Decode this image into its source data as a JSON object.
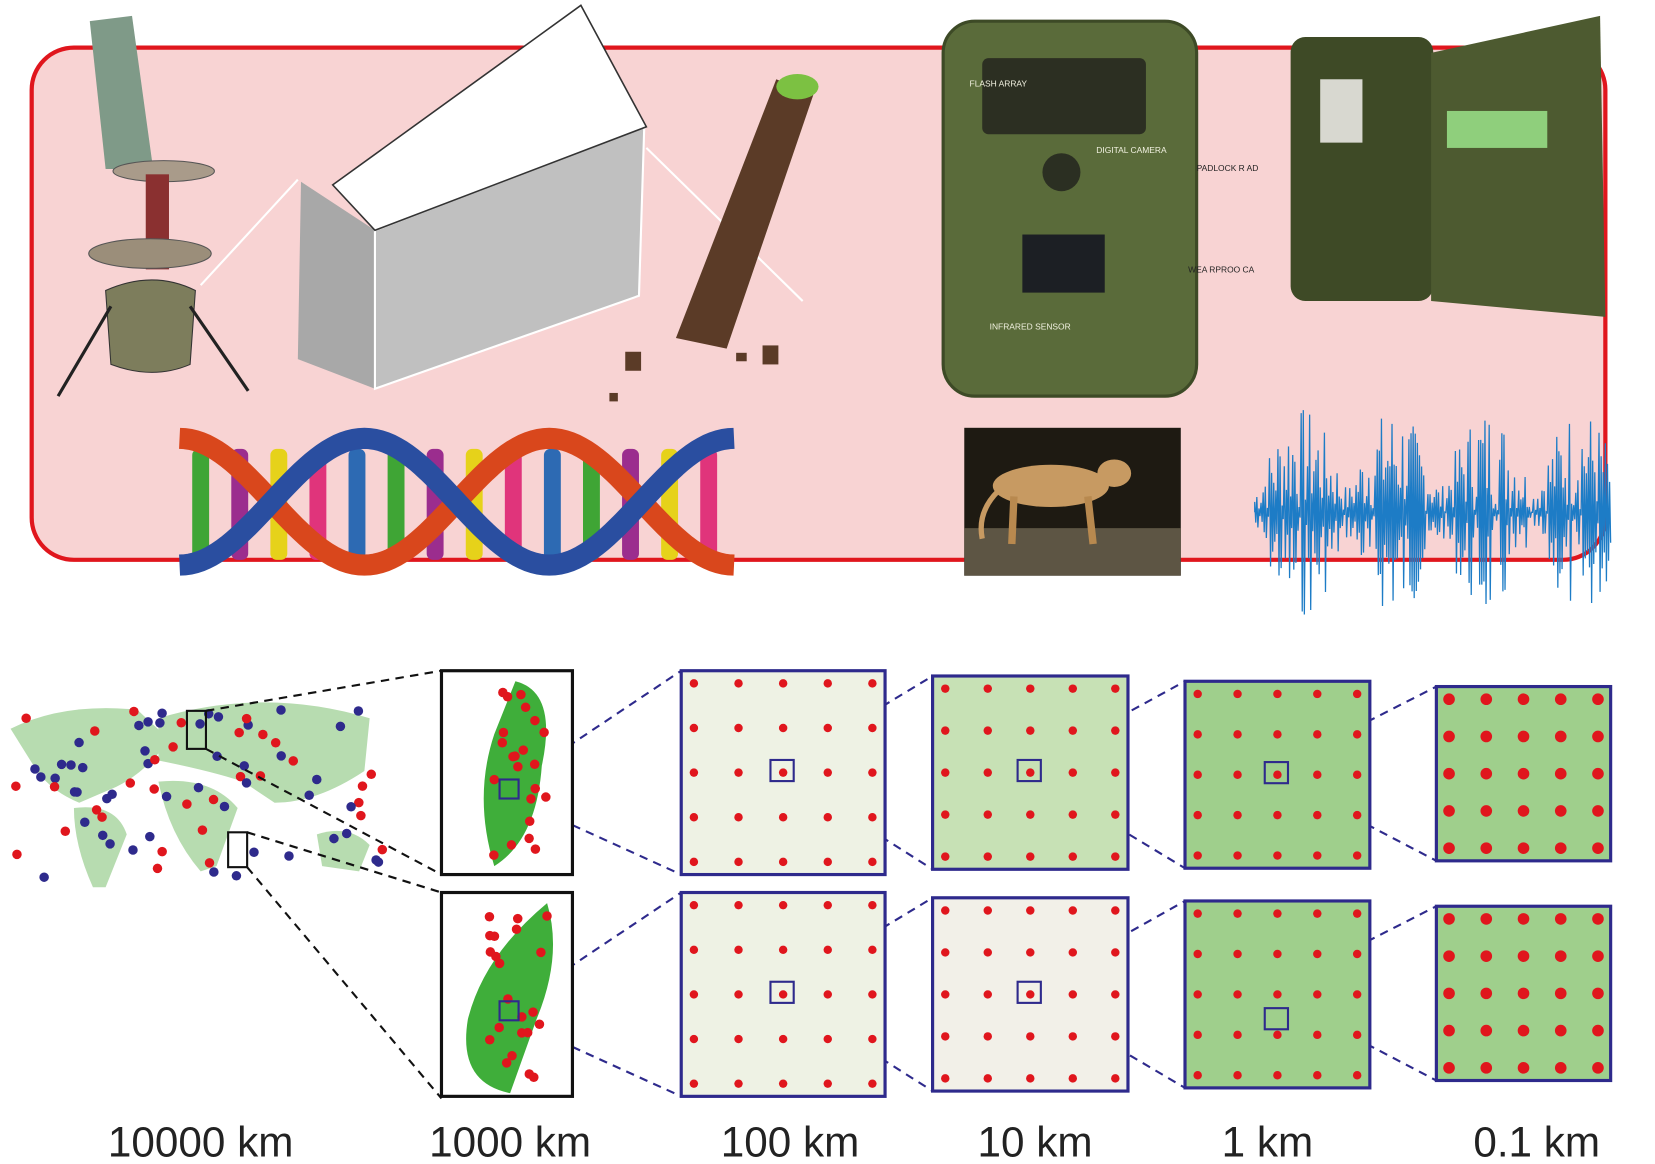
{
  "camera_labels": [
    "FLASH ARRAY",
    "DIGITAL CAMERA",
    "PADLOCK R AD",
    "WEA RPROO CA",
    "INFRARED SENSOR"
  ],
  "scales": [
    "10000 km",
    "1000 km",
    "100 km",
    "10 km",
    "1 km",
    "0.1 km"
  ]
}
